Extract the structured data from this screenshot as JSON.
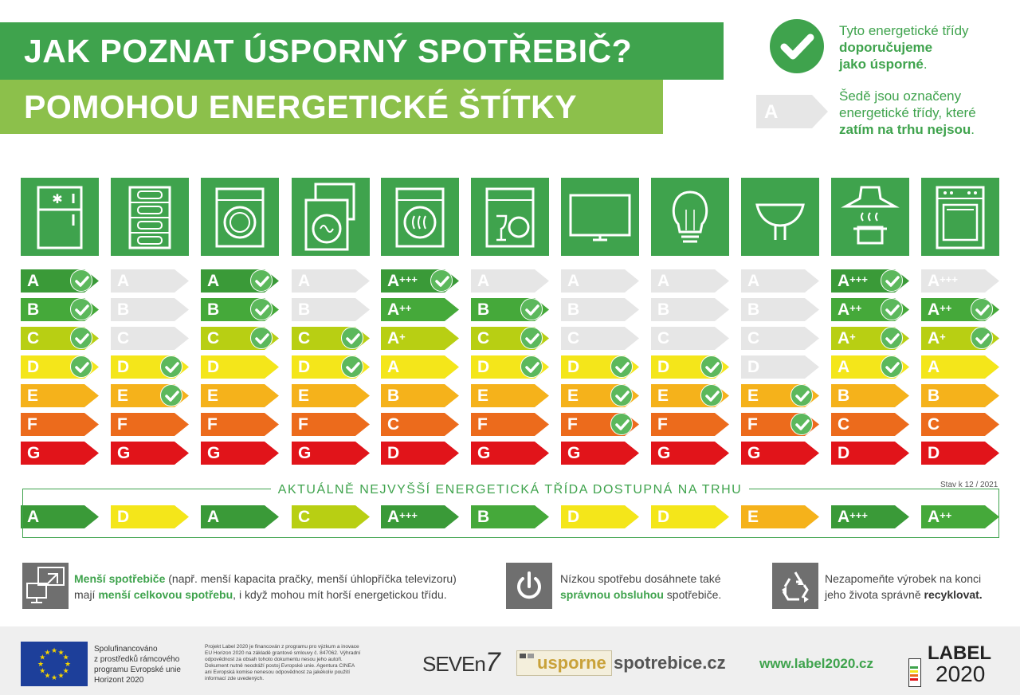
{
  "header": {
    "title_line1": "JAK POZNAT ÚSPORNÝ SPOTŘEBIČ?",
    "title_line2": "POMOHOU ENERGETICKÉ ŠTÍTKY"
  },
  "legend": {
    "recommended_line1": "Tyto energetické třídy",
    "recommended_line2": "doporučujeme",
    "recommended_line3_bold": "jako úsporné",
    "recommended_line3_end": ".",
    "grey_line1": "Šedě jsou označeny",
    "grey_line2": "energetické třídy, které",
    "grey_line3": "zatím na trhu nejsou",
    "grey_line3_end": ".",
    "grey_sample_label": "A"
  },
  "appliances": [
    {
      "icon": "fridge-icon",
      "classes": [
        [
          "A",
          "",
          "c",
          "g"
        ],
        [
          "B",
          "",
          "c",
          "g"
        ],
        [
          "C",
          "",
          "c",
          "g"
        ],
        [
          "D",
          "",
          "c",
          "g"
        ],
        [
          "E",
          "",
          "",
          ""
        ],
        [
          "F",
          "",
          "",
          ""
        ],
        [
          "G",
          "",
          "",
          ""
        ]
      ],
      "current": [
        "A",
        ""
      ]
    },
    {
      "icon": "wine-cooler-icon",
      "classes": [
        [
          "A",
          "",
          "",
          "x"
        ],
        [
          "B",
          "",
          "",
          "x"
        ],
        [
          "C",
          "",
          "",
          "x"
        ],
        [
          "D",
          "",
          "c",
          ""
        ],
        [
          "E",
          "",
          "c",
          ""
        ],
        [
          "F",
          "",
          "",
          ""
        ],
        [
          "G",
          "",
          "",
          ""
        ]
      ],
      "current": [
        "D",
        ""
      ]
    },
    {
      "icon": "washing-machine-icon",
      "classes": [
        [
          "A",
          "",
          "c",
          ""
        ],
        [
          "B",
          "",
          "c",
          ""
        ],
        [
          "C",
          "",
          "c",
          ""
        ],
        [
          "D",
          "",
          "",
          ""
        ],
        [
          "E",
          "",
          "",
          ""
        ],
        [
          "F",
          "",
          "",
          ""
        ],
        [
          "G",
          "",
          "",
          ""
        ]
      ],
      "current": [
        "A",
        ""
      ]
    },
    {
      "icon": "washer-dryer-icon",
      "classes": [
        [
          "A",
          "",
          "",
          "x"
        ],
        [
          "B",
          "",
          "",
          "x"
        ],
        [
          "C",
          "",
          "c",
          ""
        ],
        [
          "D",
          "",
          "c",
          ""
        ],
        [
          "E",
          "",
          "",
          ""
        ],
        [
          "F",
          "",
          "",
          ""
        ],
        [
          "G",
          "",
          "",
          ""
        ]
      ],
      "current": [
        "C",
        ""
      ]
    },
    {
      "icon": "tumble-dryer-icon",
      "classes": [
        [
          "A",
          "+++",
          "c",
          ""
        ],
        [
          "A",
          "++",
          "",
          ""
        ],
        [
          "A",
          "+",
          "",
          ""
        ],
        [
          "A",
          "",
          "",
          ""
        ],
        [
          "B",
          "",
          "",
          ""
        ],
        [
          "C",
          "",
          "",
          ""
        ],
        [
          "D",
          "",
          "",
          ""
        ]
      ],
      "current": [
        "A",
        "+++"
      ]
    },
    {
      "icon": "dishwasher-icon",
      "classes": [
        [
          "A",
          "",
          "",
          "x"
        ],
        [
          "B",
          "",
          "c",
          ""
        ],
        [
          "C",
          "",
          "c",
          ""
        ],
        [
          "D",
          "",
          "c",
          ""
        ],
        [
          "E",
          "",
          "",
          ""
        ],
        [
          "F",
          "",
          "",
          ""
        ],
        [
          "G",
          "",
          "",
          ""
        ]
      ],
      "current": [
        "B",
        ""
      ]
    },
    {
      "icon": "television-icon",
      "classes": [
        [
          "A",
          "",
          "",
          "x"
        ],
        [
          "B",
          "",
          "",
          "x"
        ],
        [
          "C",
          "",
          "",
          "x"
        ],
        [
          "D",
          "",
          "c",
          ""
        ],
        [
          "E",
          "",
          "c",
          ""
        ],
        [
          "F",
          "",
          "c",
          ""
        ],
        [
          "G",
          "",
          "",
          ""
        ]
      ],
      "current": [
        "D",
        ""
      ]
    },
    {
      "icon": "light-bulb-icon",
      "classes": [
        [
          "A",
          "",
          "",
          "x"
        ],
        [
          "B",
          "",
          "",
          "x"
        ],
        [
          "C",
          "",
          "",
          "x"
        ],
        [
          "D",
          "",
          "c",
          ""
        ],
        [
          "E",
          "",
          "c",
          ""
        ],
        [
          "F",
          "",
          "",
          ""
        ],
        [
          "G",
          "",
          "",
          ""
        ]
      ],
      "current": [
        "D",
        ""
      ]
    },
    {
      "icon": "spotlight-bulb-icon",
      "classes": [
        [
          "A",
          "",
          "",
          "x"
        ],
        [
          "B",
          "",
          "",
          "x"
        ],
        [
          "C",
          "",
          "",
          "x"
        ],
        [
          "D",
          "",
          "",
          "x"
        ],
        [
          "E",
          "",
          "c",
          ""
        ],
        [
          "F",
          "",
          "c",
          ""
        ],
        [
          "G",
          "",
          "",
          ""
        ]
      ],
      "current": [
        "E",
        ""
      ]
    },
    {
      "icon": "cooker-hood-icon",
      "classes": [
        [
          "A",
          "+++",
          "c",
          ""
        ],
        [
          "A",
          "++",
          "c",
          ""
        ],
        [
          "A",
          "+",
          "c",
          ""
        ],
        [
          "A",
          "",
          "c",
          ""
        ],
        [
          "B",
          "",
          "",
          ""
        ],
        [
          "C",
          "",
          "",
          ""
        ],
        [
          "D",
          "",
          "",
          ""
        ]
      ],
      "current": [
        "A",
        "+++"
      ]
    },
    {
      "icon": "oven-icon",
      "classes": [
        [
          "A",
          "+++",
          "",
          "x"
        ],
        [
          "A",
          "++",
          "c",
          ""
        ],
        [
          "A",
          "+",
          "c",
          ""
        ],
        [
          "A",
          "",
          "",
          ""
        ],
        [
          "B",
          "",
          "",
          ""
        ],
        [
          "C",
          "",
          "",
          ""
        ],
        [
          "D",
          "",
          "",
          ""
        ]
      ],
      "current": [
        "A",
        "++"
      ]
    }
  ],
  "current_band": {
    "title": "AKTUÁLNĚ NEJVYŠŠÍ ENERGETICKÁ TŘÍDA DOSTUPNÁ NA TRHU",
    "stav": "Stav k 12 / 2021"
  },
  "info": {
    "small_bold1": "Menší spotřebiče",
    "small_text1": " (např. menší kapacita pračky, menší úhlopříčka televizoru)",
    "small_text2": "mají ",
    "small_bold2": "menší celkovou spotřebu",
    "small_text3": ", i když mohou mít horší energetickou třídu.",
    "power_text1": "Nízkou spotřebu dosáhnete také",
    "power_bold": "správnou obsluhou",
    "power_text2": " spotřebiče.",
    "recycle_text1": "Nezapomeňte výrobek na konci",
    "recycle_text2": "jeho života správně ",
    "recycle_bold": "recyklovat."
  },
  "footer": {
    "eu_text": [
      "Spolufinancováno",
      "z prostředků rámcového",
      "programu Evropské unie",
      "Horizont 2020"
    ],
    "disclaimer": [
      "Projekt Label 2020 je financován z programu pro výzkum a inovace",
      "EU Horizon 2020 na základě grantové smlouvy č. 847062. Výhradní",
      "odpovědnost za obsah tohoto dokumentu nesou jeho autoři.",
      "Dokument nutně neodráží postoj Evropské unie. Agentura CINEA",
      "ani Evropská komise nenesou odpovědnost za jakékoliv použití",
      "informací zde uvedených."
    ],
    "seven_logo": "SEVEn",
    "seven_suffix": "7",
    "usporne_a": "usporne",
    "usporne_b": "spotrebice.cz",
    "label_url": "www.label2020.cz",
    "label_logo_1": "LABEL",
    "label_logo_2": "2020"
  },
  "colors": {
    "green": "#3fa34d",
    "light_green": "#8cc04b",
    "grey_bar": "#e6e6e6",
    "class_colors": [
      "#3a9a38",
      "#45a93a",
      "#b8cf13",
      "#f4e61a",
      "#f5b21b",
      "#ec6b1c",
      "#e1141a"
    ]
  }
}
